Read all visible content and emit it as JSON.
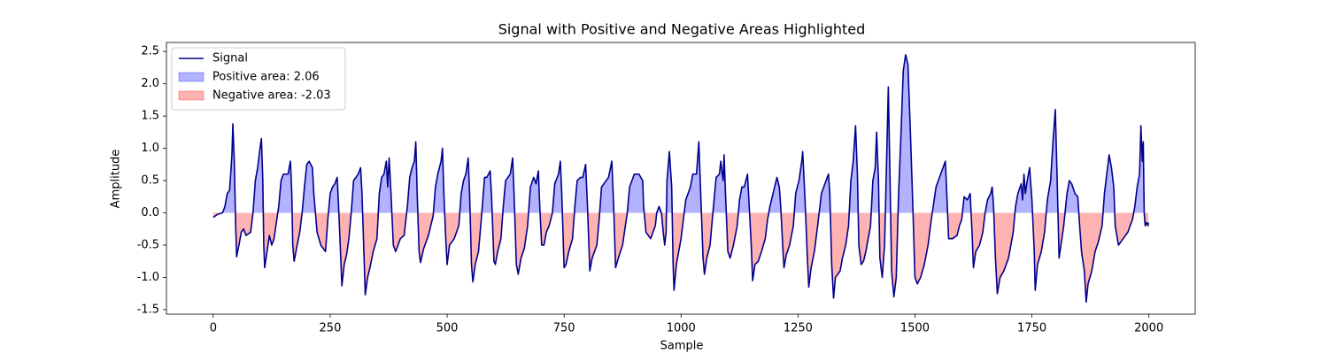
{
  "chart_data": {
    "type": "line",
    "title": "Signal with Positive and Negative Areas Highlighted",
    "x_label": "Sample",
    "y_label": "Amplitude",
    "xlim": [
      -100,
      2099
    ],
    "ylim": [
      -1.57,
      2.64
    ],
    "xticks": [
      0,
      250,
      500,
      750,
      1000,
      1250,
      1500,
      1750,
      2000
    ],
    "yticks": [
      -1.5,
      {
        "value": -1.0,
        "label": "-1.0"
      },
      -0.5,
      {
        "value": 0.0,
        "label": "0.0"
      },
      0.5,
      {
        "value": 1.0,
        "label": "1.0"
      },
      1.5,
      {
        "value": 2.0,
        "label": "2.0"
      },
      2.5
    ],
    "grid": false,
    "legend_position": "upper left",
    "positive_fill": {
      "name": "Positive area: 2.06",
      "color": "#0000ff"
    },
    "negative_fill": {
      "name": "Negative area: -2.03",
      "color": "#ff0000"
    },
    "x": [
      0,
      10,
      20,
      25,
      30,
      35,
      40,
      42,
      45,
      48,
      50,
      55,
      60,
      65,
      70,
      80,
      85,
      90,
      95,
      100,
      103,
      106,
      108,
      110,
      115,
      120,
      125,
      130,
      140,
      145,
      150,
      160,
      165,
      168,
      170,
      173,
      178,
      185,
      190,
      195,
      200,
      205,
      212,
      215,
      222,
      230,
      240,
      245,
      250,
      255,
      260,
      265,
      268,
      272,
      275,
      280,
      285,
      290,
      295,
      300,
      310,
      315,
      318,
      322,
      325,
      330,
      335,
      342,
      350,
      355,
      360,
      365,
      370,
      373,
      376,
      380,
      385,
      390,
      395,
      400,
      408,
      415,
      420,
      425,
      430,
      433,
      436,
      440,
      443,
      450,
      460,
      470,
      475,
      480,
      487,
      490,
      493,
      497,
      500,
      505,
      515,
      525,
      530,
      535,
      540,
      545,
      548,
      552,
      555,
      560,
      567,
      573,
      580,
      585,
      592,
      595,
      600,
      603,
      608,
      615,
      620,
      625,
      635,
      640,
      643,
      648,
      652,
      658,
      665,
      672,
      678,
      685,
      690,
      695,
      698,
      702,
      707,
      712,
      718,
      725,
      730,
      738,
      742,
      745,
      750,
      754,
      760,
      768,
      773,
      778,
      785,
      790,
      796,
      800,
      805,
      810,
      820,
      825,
      830,
      840,
      845,
      852,
      856,
      860,
      866,
      875,
      885,
      890,
      900,
      910,
      918,
      920,
      925,
      935,
      945,
      948,
      953,
      958,
      962,
      965,
      968,
      970,
      975,
      980,
      983,
      985,
      990,
      995,
      1000,
      1005,
      1010,
      1020,
      1025,
      1033,
      1038,
      1042,
      1047,
      1050,
      1055,
      1062,
      1068,
      1075,
      1082,
      1085,
      1090,
      1092,
      1095,
      1100,
      1105,
      1112,
      1120,
      1125,
      1130,
      1135,
      1142,
      1145,
      1150,
      1153,
      1158,
      1165,
      1172,
      1180,
      1185,
      1190,
      1200,
      1205,
      1210,
      1213,
      1218,
      1220,
      1225,
      1232,
      1240,
      1245,
      1252,
      1258,
      1260,
      1265,
      1270,
      1273,
      1278,
      1285,
      1292,
      1300,
      1305,
      1315,
      1318,
      1322,
      1326,
      1330,
      1340,
      1345,
      1352,
      1358,
      1363,
      1368,
      1373,
      1377,
      1380,
      1385,
      1390,
      1395,
      1400,
      1405,
      1410,
      1415,
      1418,
      1422,
      1425,
      1430,
      1435,
      1440,
      1443,
      1447,
      1450,
      1455,
      1460,
      1465,
      1470,
      1475,
      1480,
      1485,
      1490,
      1495,
      1500,
      1505,
      1512,
      1520,
      1528,
      1535,
      1545,
      1555,
      1565,
      1568,
      1572,
      1580,
      1590,
      1595,
      1600,
      1605,
      1612,
      1618,
      1622,
      1625,
      1630,
      1638,
      1645,
      1650,
      1655,
      1662,
      1665,
      1668,
      1672,
      1676,
      1682,
      1690,
      1700,
      1710,
      1715,
      1720,
      1727,
      1730,
      1733,
      1736,
      1740,
      1745,
      1750,
      1755,
      1757,
      1762,
      1770,
      1777,
      1783,
      1790,
      1795,
      1800,
      1804,
      1808,
      1812,
      1818,
      1825,
      1830,
      1835,
      1842,
      1848,
      1852,
      1856,
      1862,
      1866,
      1870,
      1878,
      1885,
      1892,
      1900,
      1905,
      1910,
      1915,
      1920,
      1925,
      1928,
      1935,
      1945,
      1955,
      1965,
      1970,
      1975,
      1980,
      1983,
      1986,
      1988,
      1990,
      1992,
      1995,
      1998,
      1999
    ],
    "series": [
      {
        "name": "Signal",
        "color": "#00008b",
        "values": [
          -0.07,
          -0.02,
          0.0,
          0.1,
          0.3,
          0.35,
          0.9,
          1.38,
          0.8,
          -0.2,
          -0.68,
          -0.5,
          -0.3,
          -0.25,
          -0.35,
          -0.3,
          0.0,
          0.5,
          0.7,
          1.0,
          1.15,
          0.5,
          -0.5,
          -0.85,
          -0.6,
          -0.35,
          -0.5,
          -0.4,
          0.1,
          0.5,
          0.6,
          0.6,
          0.8,
          0.3,
          -0.5,
          -0.75,
          -0.55,
          -0.3,
          0.0,
          0.4,
          0.75,
          0.8,
          0.7,
          0.3,
          -0.3,
          -0.5,
          -0.6,
          -0.1,
          0.3,
          0.4,
          0.45,
          0.55,
          0.1,
          -0.6,
          -1.13,
          -0.8,
          -0.65,
          -0.4,
          0.0,
          0.5,
          0.6,
          0.7,
          0.3,
          -0.6,
          -1.27,
          -1.0,
          -0.85,
          -0.6,
          -0.4,
          0.3,
          0.55,
          0.6,
          0.8,
          0.4,
          0.85,
          0.3,
          -0.5,
          -0.6,
          -0.5,
          -0.4,
          -0.35,
          0.1,
          0.55,
          0.7,
          0.8,
          1.1,
          0.3,
          -0.6,
          -0.77,
          -0.55,
          -0.35,
          -0.05,
          0.4,
          0.6,
          0.8,
          1.0,
          0.3,
          -0.4,
          -0.8,
          -0.5,
          -0.4,
          -0.2,
          0.3,
          0.5,
          0.6,
          0.85,
          0.3,
          -0.8,
          -1.07,
          -0.8,
          -0.6,
          -0.1,
          0.55,
          0.55,
          0.65,
          0.25,
          -0.75,
          -0.8,
          -0.6,
          -0.4,
          0.1,
          0.5,
          0.6,
          0.85,
          0.3,
          -0.8,
          -0.95,
          -0.7,
          -0.55,
          -0.2,
          0.4,
          0.55,
          0.45,
          0.65,
          0.1,
          -0.5,
          -0.5,
          -0.3,
          -0.2,
          0.0,
          0.45,
          0.6,
          0.8,
          0.3,
          -0.85,
          -0.8,
          -0.6,
          -0.4,
          0.1,
          0.5,
          0.55,
          0.55,
          0.75,
          0.1,
          -0.9,
          -0.7,
          -0.5,
          -0.1,
          0.4,
          0.5,
          0.55,
          0.8,
          0.1,
          -0.85,
          -0.7,
          -0.5,
          0.0,
          0.4,
          0.6,
          0.6,
          0.5,
          0.1,
          -0.3,
          -0.4,
          -0.2,
          0.0,
          0.1,
          0.0,
          -0.3,
          -0.5,
          -0.3,
          0.5,
          0.95,
          0.4,
          -0.8,
          -1.2,
          -0.8,
          -0.6,
          -0.4,
          -0.1,
          0.2,
          0.4,
          0.6,
          0.6,
          1.1,
          0.3,
          -0.7,
          -0.95,
          -0.7,
          -0.5,
          0.0,
          0.55,
          0.6,
          0.8,
          0.5,
          0.9,
          0.3,
          -0.6,
          -0.7,
          -0.5,
          -0.2,
          0.2,
          0.4,
          0.4,
          0.6,
          0.2,
          -0.5,
          -1.05,
          -0.8,
          -0.75,
          -0.6,
          -0.4,
          -0.1,
          0.1,
          0.4,
          0.55,
          0.4,
          0.1,
          -0.6,
          -0.85,
          -0.65,
          -0.5,
          -0.2,
          0.3,
          0.5,
          0.8,
          0.95,
          0.2,
          -0.7,
          -1.15,
          -0.85,
          -0.6,
          -0.2,
          0.3,
          0.4,
          0.6,
          0.3,
          -0.8,
          -1.32,
          -1.0,
          -0.9,
          -0.7,
          -0.5,
          -0.2,
          0.5,
          0.8,
          1.35,
          0.6,
          -0.5,
          -0.8,
          -0.75,
          -0.6,
          -0.4,
          -0.2,
          0.5,
          0.7,
          1.25,
          0.5,
          -0.7,
          -1.0,
          -0.5,
          1.0,
          1.95,
          0.4,
          -0.9,
          -1.3,
          -1.0,
          0.3,
          1.2,
          2.2,
          2.45,
          2.3,
          1.3,
          0.2,
          -1.0,
          -1.1,
          -1.0,
          -0.8,
          -0.5,
          -0.1,
          0.4,
          0.6,
          0.8,
          0.3,
          -0.4,
          -0.4,
          -0.35,
          -0.2,
          -0.1,
          0.25,
          0.2,
          0.3,
          -0.3,
          -0.85,
          -0.6,
          -0.5,
          -0.3,
          0.0,
          0.2,
          0.3,
          0.4,
          0.1,
          -0.7,
          -1.25,
          -1.0,
          -0.9,
          -0.7,
          -0.3,
          0.1,
          0.3,
          0.45,
          0.2,
          0.6,
          0.3,
          0.5,
          0.7,
          0.2,
          -0.6,
          -1.2,
          -0.8,
          -0.6,
          -0.3,
          0.2,
          0.5,
          1.1,
          1.6,
          0.5,
          -0.7,
          -0.5,
          -0.2,
          0.3,
          0.5,
          0.45,
          0.3,
          0.25,
          -0.2,
          -0.6,
          -0.9,
          -1.38,
          -1.1,
          -0.9,
          -0.6,
          -0.45,
          -0.2,
          0.3,
          0.6,
          0.9,
          0.7,
          0.4,
          -0.2,
          -0.5,
          -0.4,
          -0.3,
          -0.1,
          0.1,
          0.4,
          0.6,
          1.35,
          0.8,
          1.1,
          0.0,
          -0.2,
          -0.15,
          -0.2,
          -0.15
        ]
      }
    ]
  }
}
